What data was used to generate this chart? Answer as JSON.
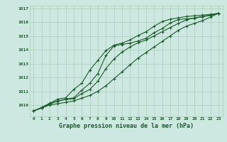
{
  "xlabel": "Graphe pression niveau de la mer (hPa)",
  "background_color": "#cce8e0",
  "grid_color": "#aaccbb",
  "line_color": "#1a5c2a",
  "x": [
    0,
    1,
    2,
    3,
    4,
    5,
    6,
    7,
    8,
    9,
    10,
    11,
    12,
    13,
    14,
    15,
    16,
    17,
    18,
    19,
    20,
    21,
    22,
    23
  ],
  "line1": [
    1009.6,
    1009.8,
    1010.1,
    1010.3,
    1010.45,
    1010.55,
    1011.1,
    1011.6,
    1012.3,
    1013.6,
    1014.3,
    1014.4,
    1014.5,
    1014.65,
    1014.85,
    1015.25,
    1015.55,
    1015.95,
    1016.2,
    1016.25,
    1016.3,
    1016.4,
    1016.5,
    1016.65
  ],
  "line2": [
    1009.6,
    1009.85,
    1010.15,
    1010.45,
    1010.55,
    1011.15,
    1011.6,
    1012.55,
    1013.25,
    1013.95,
    1014.35,
    1014.5,
    1014.72,
    1015.05,
    1015.32,
    1015.72,
    1016.05,
    1016.22,
    1016.32,
    1016.42,
    1016.47,
    1016.52,
    1016.57,
    1016.65
  ],
  "line3": [
    1009.6,
    1009.82,
    1010.12,
    1010.32,
    1010.42,
    1010.48,
    1010.85,
    1011.15,
    1011.75,
    1012.65,
    1013.35,
    1013.85,
    1014.22,
    1014.52,
    1014.72,
    1015.02,
    1015.32,
    1015.62,
    1015.92,
    1016.17,
    1016.32,
    1016.42,
    1016.52,
    1016.65
  ],
  "line4": [
    1009.6,
    1009.82,
    1010.02,
    1010.12,
    1010.22,
    1010.32,
    1010.52,
    1010.72,
    1011.02,
    1011.42,
    1011.92,
    1012.42,
    1012.92,
    1013.42,
    1013.82,
    1014.22,
    1014.62,
    1015.02,
    1015.42,
    1015.72,
    1015.92,
    1016.12,
    1016.37,
    1016.65
  ],
  "ylim": [
    1009.2,
    1017.2
  ],
  "yticks": [
    1010,
    1011,
    1012,
    1013,
    1014,
    1015,
    1016,
    1017
  ],
  "xticks": [
    0,
    1,
    2,
    3,
    4,
    5,
    6,
    7,
    8,
    9,
    10,
    11,
    12,
    13,
    14,
    15,
    16,
    17,
    18,
    19,
    20,
    21,
    22,
    23
  ]
}
